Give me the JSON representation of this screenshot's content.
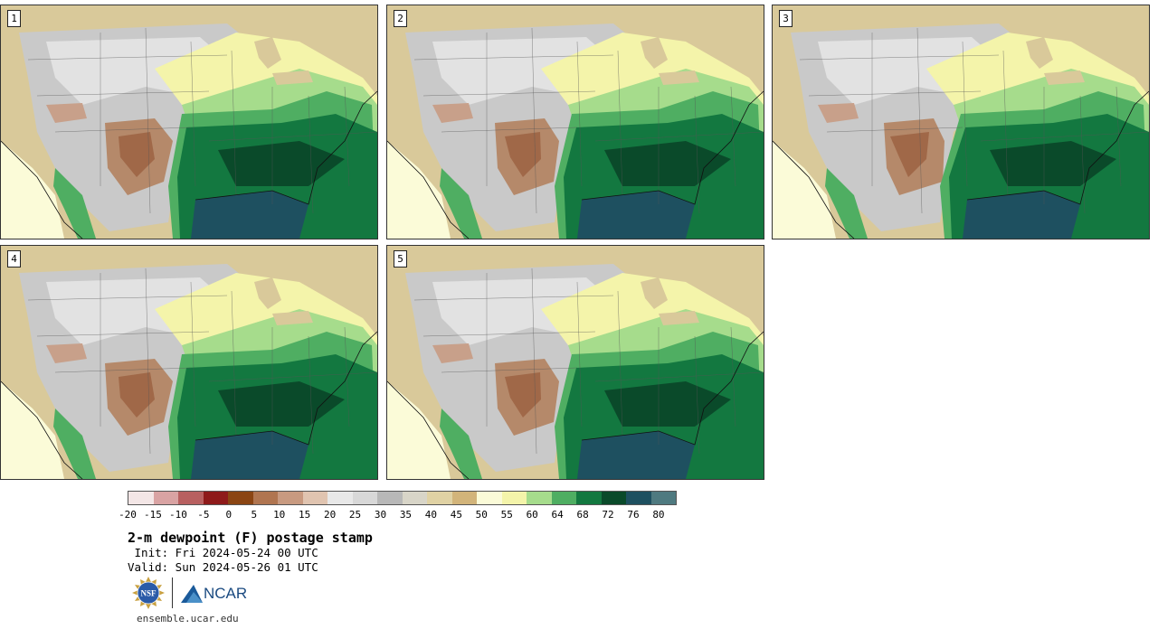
{
  "panels": [
    {
      "label": "1"
    },
    {
      "label": "2"
    },
    {
      "label": "3"
    },
    {
      "label": "4"
    },
    {
      "label": "5"
    }
  ],
  "colorbar": {
    "colors": [
      "#f3e6e6",
      "#d9a3a3",
      "#b86060",
      "#8e1a1a",
      "#8b4513",
      "#b07550",
      "#c89a80",
      "#e0c4b0",
      "#e8e8e8",
      "#d8d8d8",
      "#b8b8b8",
      "#d8d5c8",
      "#e0d2a4",
      "#d2b47a",
      "#fbfbd8",
      "#f4f4aa",
      "#a6dc8c",
      "#4fae62",
      "#137840",
      "#0a4a2a",
      "#1e5060",
      "#4f7a80"
    ],
    "tick_labels": [
      "-20",
      "-15",
      "-10",
      "-5",
      "0",
      "5",
      "10",
      "15",
      "20",
      "25",
      "30",
      "35",
      "40",
      "45",
      "50",
      "55",
      "60",
      "64",
      "68",
      "72",
      "76",
      "80"
    ]
  },
  "title": "2-m dewpoint (F) postage stamp",
  "init": " Init: Fri 2024-05-24 00 UTC",
  "valid": "Valid: Sun 2024-05-26 01 UTC",
  "logos": {
    "nsf": "NSF",
    "ncar": "NCAR"
  },
  "website": "ensemble.ucar.edu"
}
